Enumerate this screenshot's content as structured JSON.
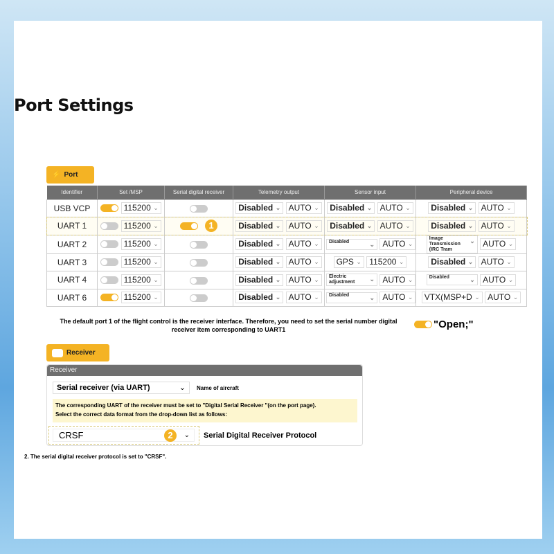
{
  "title": "Port Settings",
  "port_tab": {
    "label": "Port",
    "icon": "plug-icon"
  },
  "columns": [
    "Identifier",
    "Set /MSP",
    "Serial digital receiver",
    "Telemetry output",
    "Sensor input",
    "Peripheral device"
  ],
  "rows": [
    {
      "id": "USB VCP",
      "msp_on": true,
      "baud": "115200",
      "serial_rx": false,
      "tel": "Disabled",
      "tel_rate": "AUTO",
      "sensor": "Disabled",
      "sensor_rate": "AUTO",
      "periph": "Disabled",
      "periph_rate": "AUTO"
    },
    {
      "id": "UART 1",
      "msp_on": false,
      "baud": "115200",
      "serial_rx": true,
      "badge": "1",
      "tel": "Disabled",
      "tel_rate": "AUTO",
      "sensor": "Disabled",
      "sensor_rate": "AUTO",
      "periph": "Disabled",
      "periph_rate": "AUTO"
    },
    {
      "id": "UART 2",
      "msp_on": false,
      "baud": "115200",
      "serial_rx": false,
      "tel": "Disabled",
      "tel_rate": "AUTO",
      "sensor": "Disabled",
      "sensor_small": true,
      "sensor_rate": "AUTO",
      "periph": "Image Transmission (IRC Tram",
      "periph_small": true,
      "periph_rate": "AUTO"
    },
    {
      "id": "UART 3",
      "msp_on": false,
      "baud": "115200",
      "serial_rx": false,
      "tel": "Disabled",
      "tel_rate": "AUTO",
      "sensor": "GPS",
      "sensor_plain": true,
      "sensor_rate": "115200",
      "periph": "Disabled",
      "periph_rate": "AUTO"
    },
    {
      "id": "UART 4",
      "msp_on": false,
      "baud": "115200",
      "serial_rx": false,
      "tel": "Disabled",
      "tel_rate": "AUTO",
      "sensor": "Electric adjustment",
      "sensor_small": true,
      "sensor_rate": "AUTO",
      "periph": "Disabled",
      "periph_small": true,
      "periph_rate": "AUTO"
    },
    {
      "id": "UART 6",
      "msp_on": true,
      "baud": "115200",
      "serial_rx": false,
      "tel": "Disabled",
      "tel_rate": "AUTO",
      "sensor": "Disabled",
      "sensor_small": true,
      "sensor_rate": "AUTO",
      "periph": "VTX(MSP+D",
      "periph_plain": true,
      "periph_rate": "AUTO"
    }
  ],
  "note": "The default port 1 of the flight control is the receiver interface. Therefore, you need to set the serial number digital receiver item corresponding to UART1",
  "open_label": "\"Open;\"",
  "receiver_tab": {
    "label": "Receiver",
    "icon": "remote-control-icon"
  },
  "receiver": {
    "header": "Receiver",
    "mode": "Serial receiver (via UART)",
    "name_label": "Name of aircraft",
    "info1": "The corresponding UART of the receiver must be set to \"Digital Serial Receiver \"(on the port page).",
    "info2": "Select the correct data format from the drop-down list as follows:",
    "protocol": "CRSF",
    "badge": "2",
    "protocol_label": "Serial Digital Receiver Protocol"
  },
  "footer": "2. The serial digital receiver protocol is set to \"CRSF\".",
  "colors": {
    "accent": "#f4b324",
    "header": "#6f6f6f"
  }
}
